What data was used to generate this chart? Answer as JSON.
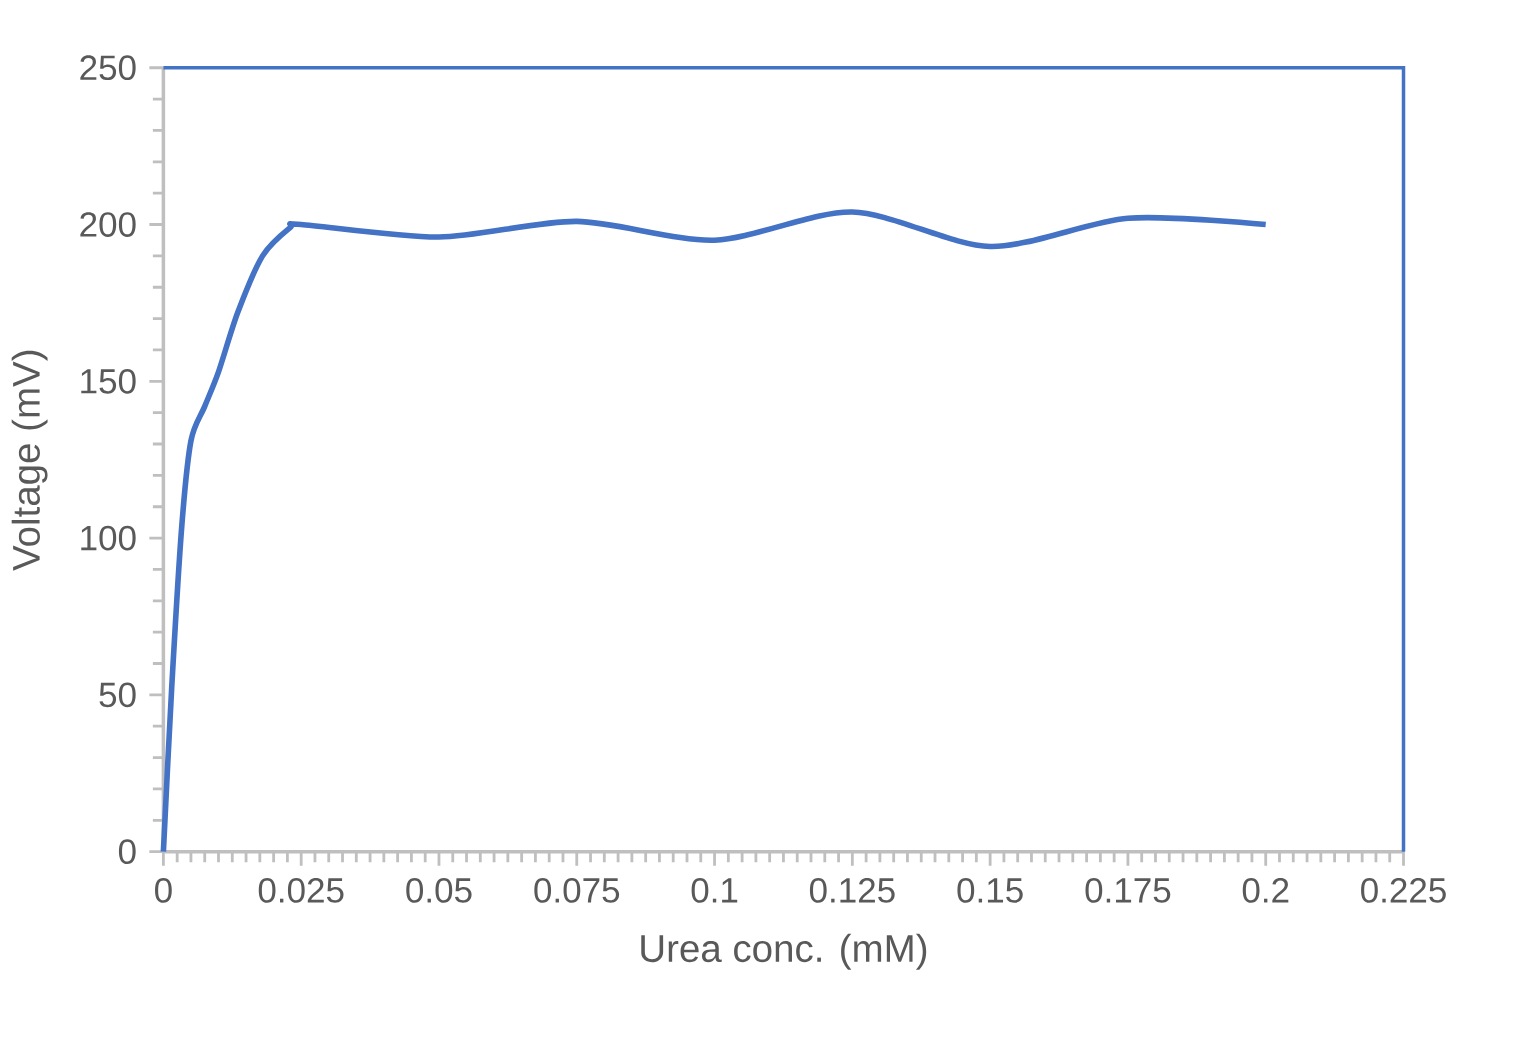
{
  "chart_data": {
    "type": "line",
    "xlabel": "Urea conc. (mM)",
    "ylabel": "Voltage (mV)",
    "xlim": [
      0,
      0.225
    ],
    "ylim": [
      0,
      250
    ],
    "xticks": [
      0,
      0.025,
      0.05,
      0.075,
      0.1,
      0.125,
      0.15,
      0.175,
      0.2,
      0.225
    ],
    "yticks": [
      0,
      50,
      100,
      150,
      200,
      250
    ],
    "grid": false,
    "marker": "none",
    "line_style": "solid",
    "series": [
      {
        "color": "#4472c4",
        "x": [
          0,
          0.0015,
          0.0033,
          0.005,
          0.0075,
          0.01,
          0.0135,
          0.018,
          0.023,
          0.025,
          0.05,
          0.075,
          0.1,
          0.125,
          0.15,
          0.175,
          0.2
        ],
        "values": [
          0,
          52,
          103,
          131,
          142,
          153,
          172,
          190,
          199,
          200,
          196,
          201,
          195,
          204,
          193,
          202,
          200
        ]
      }
    ]
  }
}
